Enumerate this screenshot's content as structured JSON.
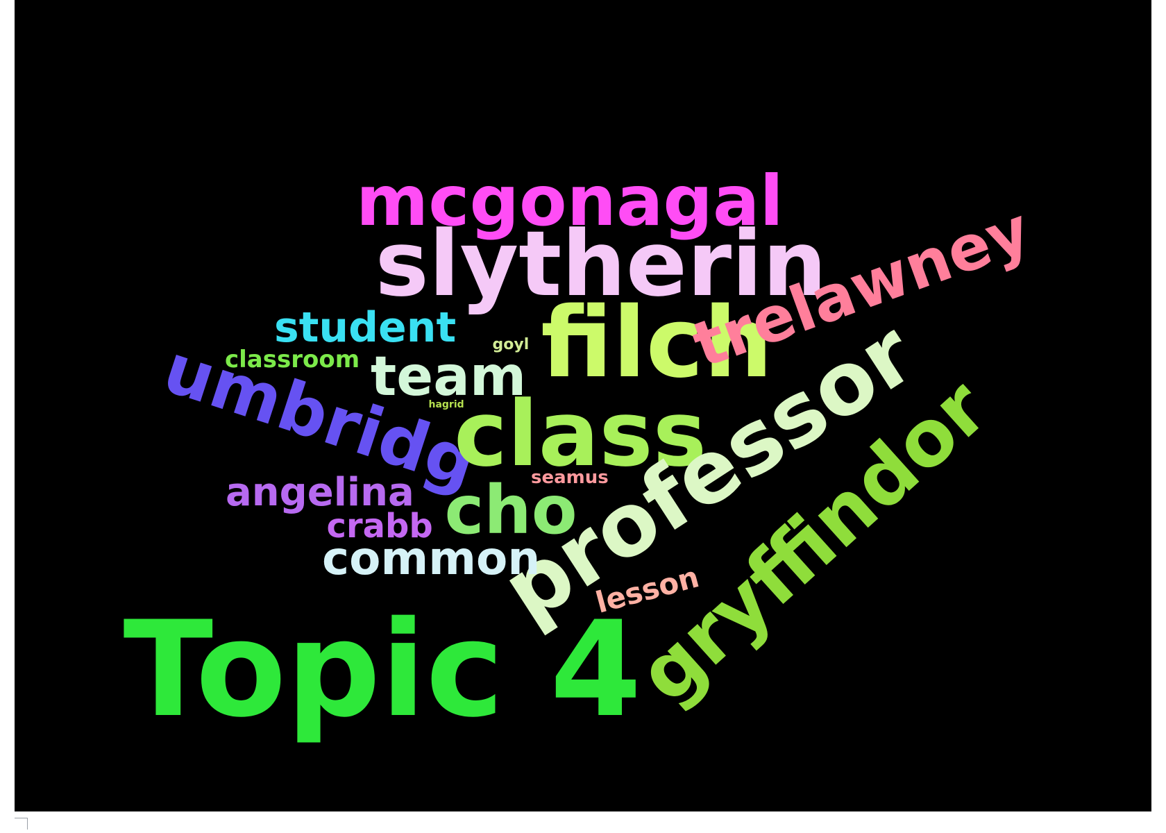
{
  "chart_data": {
    "type": "wordcloud",
    "background": "#000000",
    "words": [
      {
        "text": "mcgonagal",
        "color": "#ff4df5"
      },
      {
        "text": "slytherin",
        "color": "#f5c9f7"
      },
      {
        "text": "filch",
        "color": "#ccfa6a"
      },
      {
        "text": "trelawney",
        "color": "#ff7f9b"
      },
      {
        "text": "student",
        "color": "#3ae0f2"
      },
      {
        "text": "classroom",
        "color": "#7cea4a"
      },
      {
        "text": "goyl",
        "color": "#d2ec96"
      },
      {
        "text": "team",
        "color": "#d3f7d9"
      },
      {
        "text": "umbridg",
        "color": "#6652f2"
      },
      {
        "text": "class",
        "color": "#a8f05a"
      },
      {
        "text": "hagrid",
        "color": "#b5e04f"
      },
      {
        "text": "professor",
        "color": "#dcf7c5"
      },
      {
        "text": "gryffindor",
        "color": "#8fdd3b"
      },
      {
        "text": "seamus",
        "color": "#ff9a9e"
      },
      {
        "text": "angelina",
        "color": "#b76af0"
      },
      {
        "text": "cho",
        "color": "#8cea74"
      },
      {
        "text": "crabb",
        "color": "#c468f2"
      },
      {
        "text": "common",
        "color": "#d6f2f7"
      },
      {
        "text": "lesson",
        "color": "#ffb1a4"
      },
      {
        "text": "Topic 4",
        "color": "#2ee83a"
      }
    ]
  }
}
